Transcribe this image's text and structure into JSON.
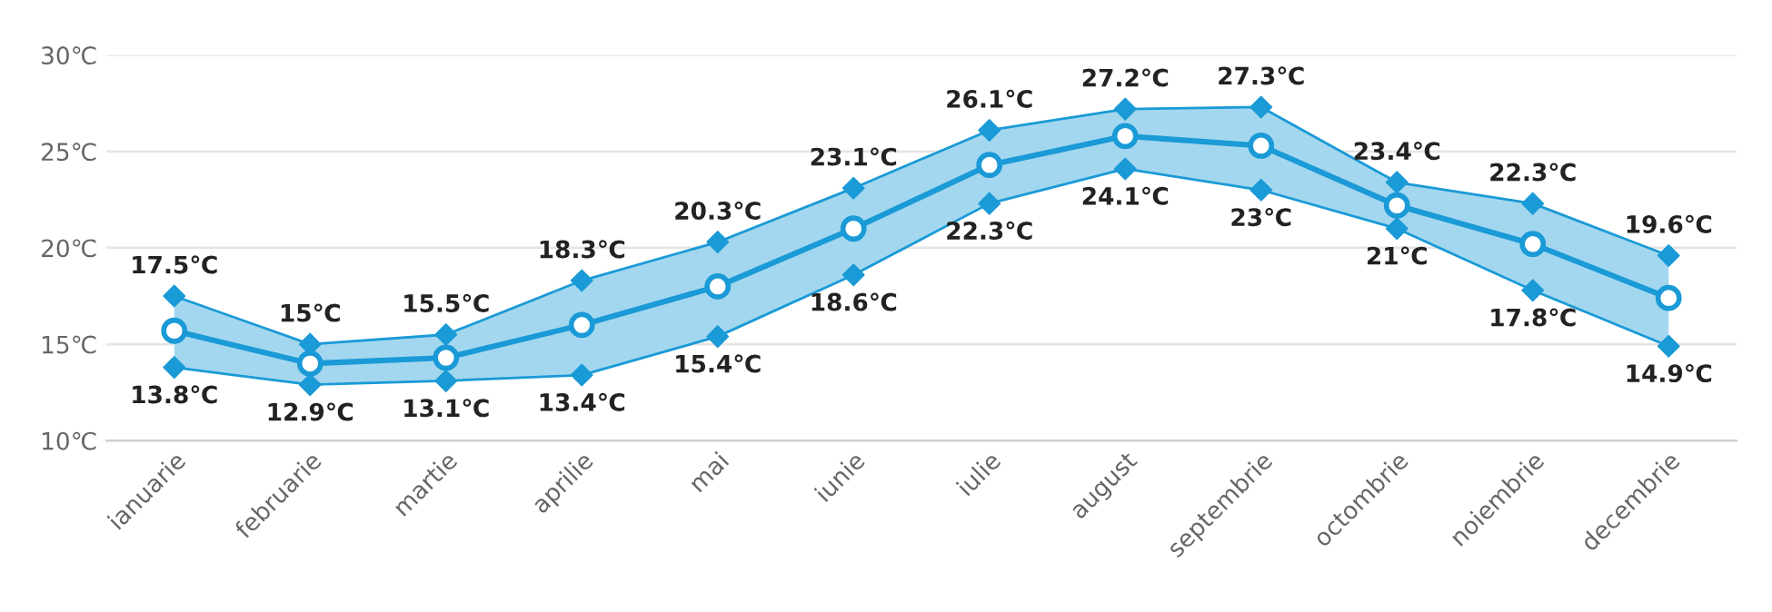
{
  "chart_data": {
    "type": "line",
    "categories": [
      "ianuarie",
      "februarie",
      "martie",
      "aprilie",
      "mai",
      "iunie",
      "iulie",
      "august",
      "septembrie",
      "octombrie",
      "noiembrie",
      "decembrie"
    ],
    "ylim": [
      10,
      30
    ],
    "yticks": [
      {
        "value": 10,
        "label": "10℃"
      },
      {
        "value": 15,
        "label": "15℃"
      },
      {
        "value": 20,
        "label": "20℃"
      },
      {
        "value": 25,
        "label": "25℃"
      },
      {
        "value": 30,
        "label": "30℃"
      }
    ],
    "grid": "y",
    "series": [
      {
        "color": "#1a9ad6",
        "marker": "circle",
        "values": [
          15.7,
          14.0,
          14.3,
          16.0,
          18.0,
          21.0,
          24.3,
          25.8,
          25.3,
          22.2,
          20.2,
          17.4
        ],
        "lower": [
          13.8,
          12.9,
          13.1,
          13.4,
          15.4,
          18.6,
          22.3,
          24.1,
          23,
          21,
          17.8,
          14.9
        ],
        "upper": [
          17.5,
          15,
          15.5,
          18.3,
          20.3,
          23.1,
          26.1,
          27.2,
          27.3,
          23.4,
          22.3,
          19.6
        ]
      },
      {
        "color": "#1a9ad6",
        "marker": "diamond",
        "values": [
          17.5,
          15,
          15.5,
          18.3,
          20.3,
          23.1,
          26.1,
          27.2,
          27.3,
          23.4,
          22.3,
          19.6
        ],
        "value_labels": [
          "17.5℃",
          "15℃",
          "15.5℃",
          "18.3℃",
          "20.3℃",
          "23.1℃",
          "26.1℃",
          "27.2℃",
          "27.3℃",
          "23.4℃",
          "22.3℃",
          "19.6℃"
        ]
      },
      {
        "color": "#1a9ad6",
        "marker": "diamond",
        "values": [
          13.8,
          12.9,
          13.1,
          13.4,
          15.4,
          18.6,
          22.3,
          24.1,
          23,
          21,
          17.8,
          14.9
        ],
        "value_labels": [
          "13.8℃",
          "12.9℃",
          "13.1℃",
          "13.4℃",
          "15.4℃",
          "18.6℃",
          "22.3℃",
          "24.1℃",
          "23℃",
          "21℃",
          "17.8℃",
          "14.9℃"
        ]
      }
    ]
  }
}
